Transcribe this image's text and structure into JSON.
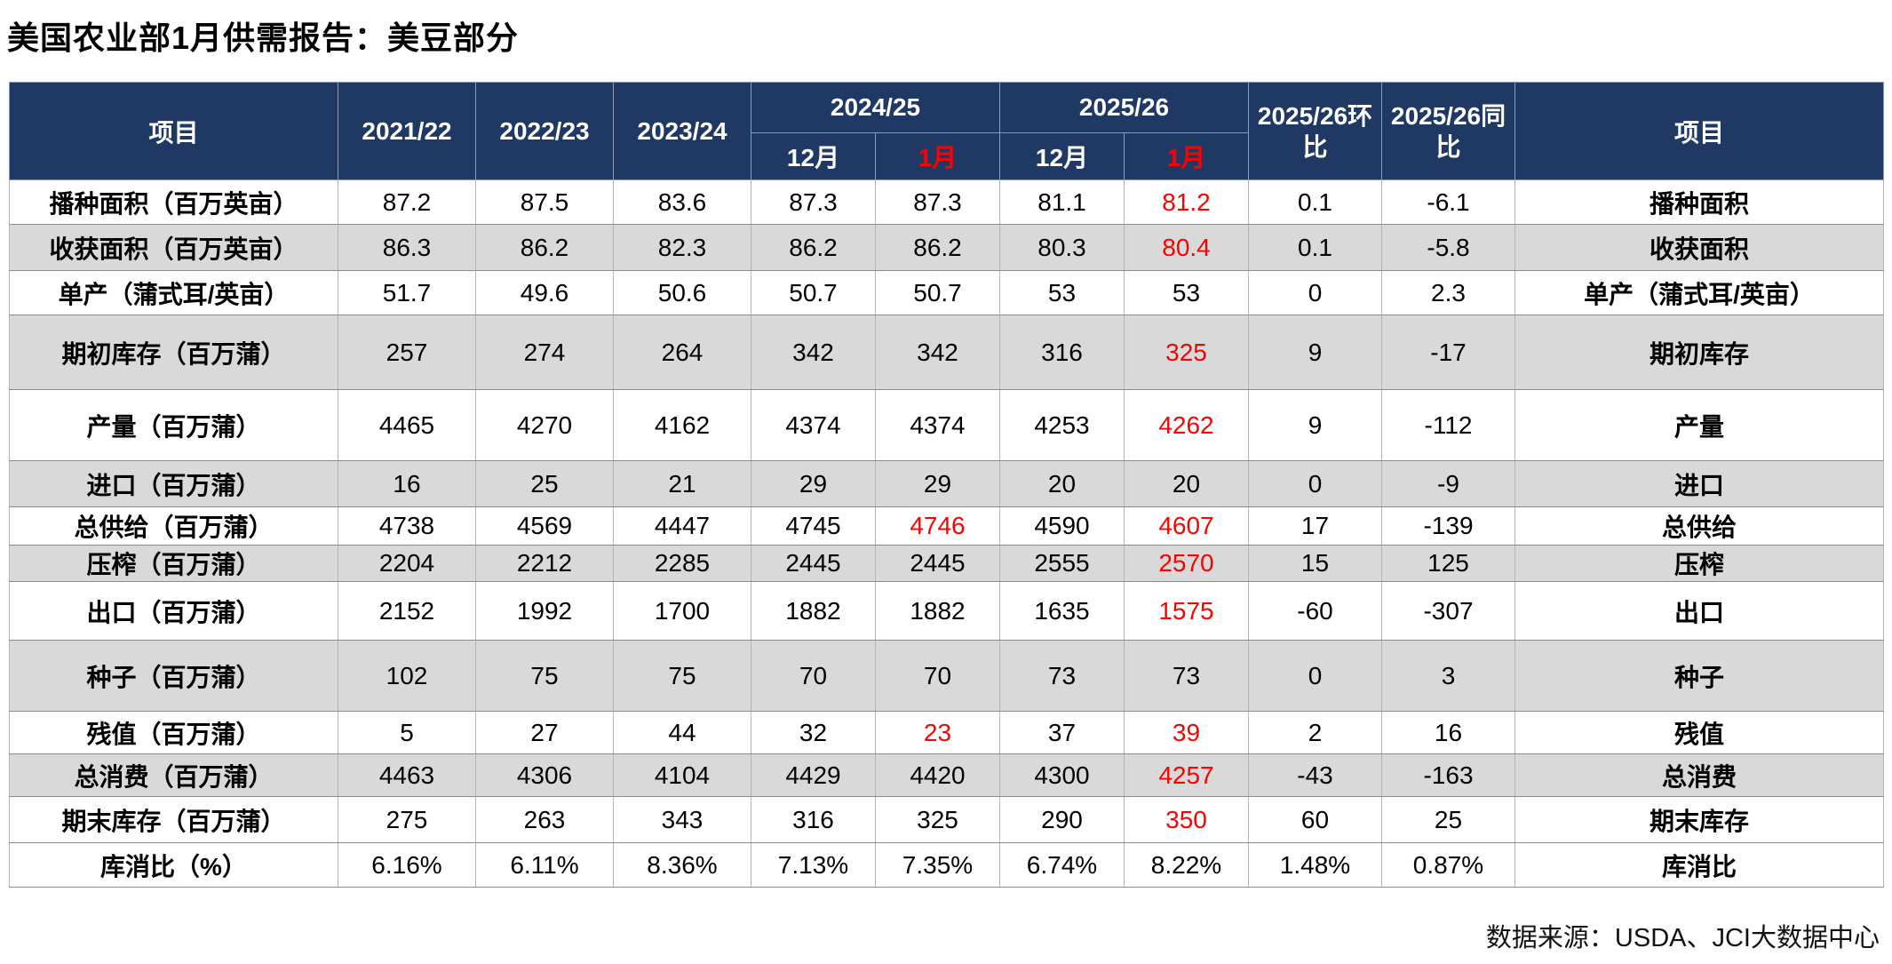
{
  "footer": "数据来源：USDA、JCI大数据中心",
  "colors": {
    "header_bg": "#1F3864",
    "header_text": "#FFFFFF",
    "highlight_red": "#FF0000",
    "row_alt_bg": "#D9D9D9",
    "row_bg": "#FFFFFF"
  },
  "chart_data": {
    "type": "table",
    "title": "美国农业部1月供需报告：美豆部分",
    "header": {
      "item_left": "项目",
      "years": [
        "2021/22",
        "2022/23",
        "2023/24"
      ],
      "group1": {
        "label": "2024/25",
        "months": [
          "12月",
          "1月"
        ]
      },
      "group2": {
        "label": "2025/26",
        "months": [
          "12月",
          "1月"
        ]
      },
      "mom": "2025/26环比",
      "yoy": "2025/26同比",
      "item_right": "项目"
    },
    "columns": [
      "项目",
      "2021/22",
      "2022/23",
      "2023/24",
      "2024/25 12月",
      "2024/25 1月",
      "2025/26 12月",
      "2025/26 1月",
      "2025/26环比",
      "2025/26同比",
      "项目"
    ],
    "rows": [
      {
        "label": "播种面积（百万英亩）",
        "values": [
          "87.2",
          "87.5",
          "83.6",
          "87.3",
          "87.3",
          "81.1",
          "81.2",
          "0.1",
          "-6.1"
        ],
        "red": [
          6
        ],
        "label_right": "播种面积",
        "shade": "white"
      },
      {
        "label": "收获面积（百万英亩）",
        "values": [
          "86.3",
          "86.2",
          "82.3",
          "86.2",
          "86.2",
          "80.3",
          "80.4",
          "0.1",
          "-5.8"
        ],
        "red": [
          6
        ],
        "label_right": "收获面积",
        "shade": "gray"
      },
      {
        "label": "单产（蒲式耳/英亩）",
        "values": [
          "51.7",
          "49.6",
          "50.6",
          "50.7",
          "50.7",
          "53",
          "53",
          "0",
          "2.3"
        ],
        "red": [],
        "label_right": "单产（蒲式耳/英亩）",
        "shade": "white"
      },
      {
        "label": "期初库存（百万蒲）",
        "values": [
          "257",
          "274",
          "264",
          "342",
          "342",
          "316",
          "325",
          "9",
          "-17"
        ],
        "red": [
          6
        ],
        "label_right": "期初库存",
        "shade": "gray"
      },
      {
        "label": "产量（百万蒲）",
        "values": [
          "4465",
          "4270",
          "4162",
          "4374",
          "4374",
          "4253",
          "4262",
          "9",
          "-112"
        ],
        "red": [
          6
        ],
        "label_right": "产量",
        "shade": "white"
      },
      {
        "label": "进口（百万蒲）",
        "values": [
          "16",
          "25",
          "21",
          "29",
          "29",
          "20",
          "20",
          "0",
          "-9"
        ],
        "red": [],
        "label_right": "进口",
        "shade": "gray"
      },
      {
        "label": "总供给（百万蒲）",
        "values": [
          "4738",
          "4569",
          "4447",
          "4745",
          "4746",
          "4590",
          "4607",
          "17",
          "-139"
        ],
        "red": [
          4,
          6
        ],
        "label_right": "总供给",
        "shade": "white"
      },
      {
        "label": "压榨（百万蒲）",
        "values": [
          "2204",
          "2212",
          "2285",
          "2445",
          "2445",
          "2555",
          "2570",
          "15",
          "125"
        ],
        "red": [
          6
        ],
        "label_right": "压榨",
        "shade": "gray"
      },
      {
        "label": "出口（百万蒲）",
        "values": [
          "2152",
          "1992",
          "1700",
          "1882",
          "1882",
          "1635",
          "1575",
          "-60",
          "-307"
        ],
        "red": [
          6
        ],
        "label_right": "出口",
        "shade": "white"
      },
      {
        "label": "种子（百万蒲）",
        "values": [
          "102",
          "75",
          "75",
          "70",
          "70",
          "73",
          "73",
          "0",
          "3"
        ],
        "red": [],
        "label_right": "种子",
        "shade": "gray"
      },
      {
        "label": "残值（百万蒲）",
        "values": [
          "5",
          "27",
          "44",
          "32",
          "23",
          "37",
          "39",
          "2",
          "16"
        ],
        "red": [
          4,
          6
        ],
        "label_right": "残值",
        "shade": "white"
      },
      {
        "label": "总消费（百万蒲）",
        "values": [
          "4463",
          "4306",
          "4104",
          "4429",
          "4420",
          "4300",
          "4257",
          "-43",
          "-163"
        ],
        "red": [
          6
        ],
        "label_right": "总消费",
        "shade": "gray"
      },
      {
        "label": "期末库存（百万蒲）",
        "values": [
          "275",
          "263",
          "343",
          "316",
          "325",
          "290",
          "350",
          "60",
          "25"
        ],
        "red": [
          6
        ],
        "label_right": "期末库存",
        "shade": "white"
      },
      {
        "label": "库消比（%）",
        "values": [
          "6.16%",
          "6.11%",
          "8.36%",
          "7.13%",
          "7.35%",
          "6.74%",
          "8.22%",
          "1.48%",
          "0.87%"
        ],
        "red": [],
        "label_right": "库消比",
        "shade": "white"
      }
    ]
  }
}
